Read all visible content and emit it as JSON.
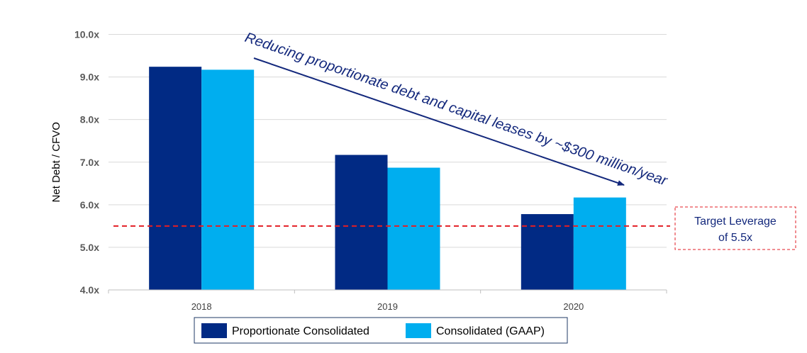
{
  "chart_data": {
    "type": "bar",
    "categories": [
      "2018",
      "2019",
      "2020"
    ],
    "series": [
      {
        "name": "Proportionate Consolidated",
        "color": "#012a84",
        "values": [
          9.24,
          7.17,
          5.78
        ]
      },
      {
        "name": "Consolidated (GAAP)",
        "color": "#00aeef",
        "values": [
          9.17,
          6.87,
          6.17
        ]
      }
    ],
    "ylabel": "Net Debt / CFVO",
    "ylim": [
      4.0,
      10.0
    ],
    "yticks": [
      "4.0x",
      "5.0x",
      "6.0x",
      "7.0x",
      "8.0x",
      "9.0x",
      "10.0x"
    ],
    "ytick_values": [
      4,
      5,
      6,
      7,
      8,
      9,
      10
    ],
    "grid": true,
    "legend_position": "bottom",
    "reference_line": {
      "value": 5.5,
      "color": "#e31e24",
      "style": "dashed"
    },
    "target_box": {
      "line1": "Target Leverage",
      "line2": "of 5.5x"
    },
    "annotation": {
      "text": "Reducing proportionate debt and capital leases by ~$300 million/year",
      "color": "#13287c"
    }
  }
}
